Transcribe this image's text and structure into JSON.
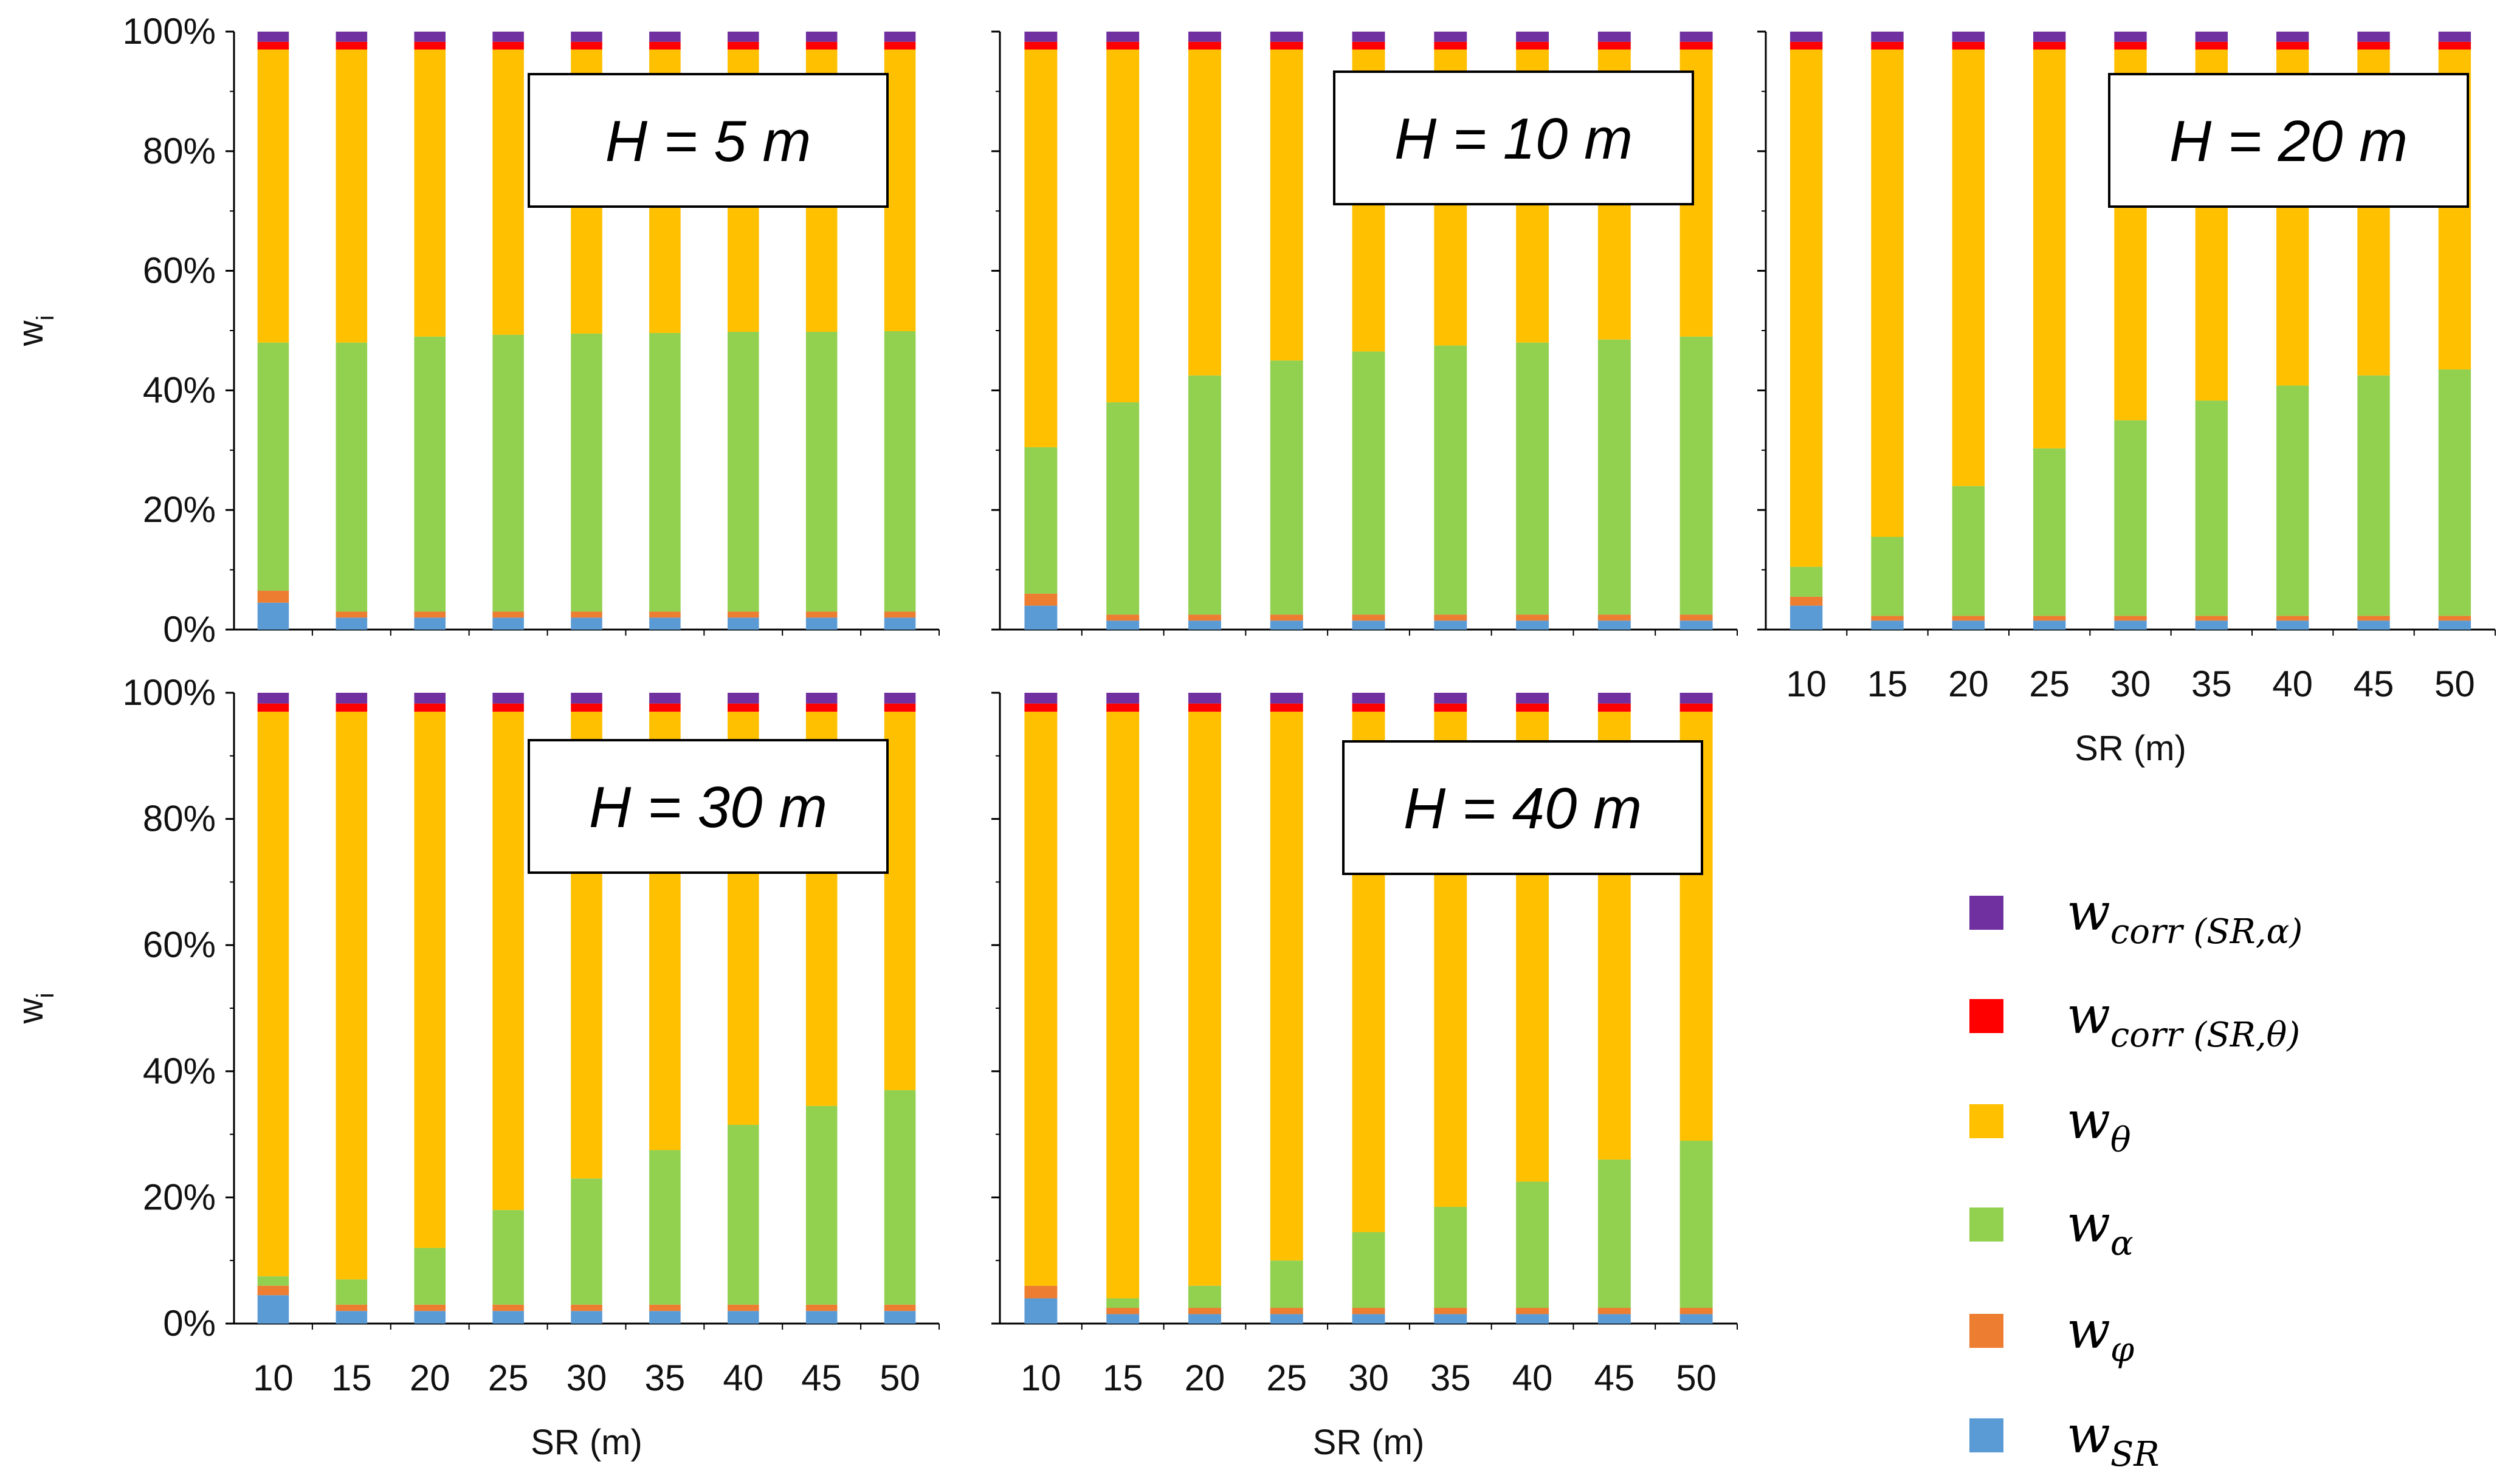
{
  "figure": {
    "y_axis_label": "w",
    "y_axis_label_sub": "i",
    "x_axis_label": "SR (m)"
  },
  "legend": [
    {
      "key": "w_corr_SR_alpha",
      "base": "w",
      "sub": "corr (SR,α)",
      "color": "#7030A0"
    },
    {
      "key": "w_corr_SR_theta",
      "base": "w",
      "sub": "corr (SR,θ)",
      "color": "#FF0000"
    },
    {
      "key": "w_theta",
      "base": "w",
      "sub": "θ",
      "color": "#FFC000"
    },
    {
      "key": "w_alpha",
      "base": "w",
      "sub": "α",
      "color": "#92D050"
    },
    {
      "key": "w_phi",
      "base": "w",
      "sub": "φ",
      "color": "#ED7D31"
    },
    {
      "key": "w_SR",
      "base": "w",
      "sub": "SR",
      "color": "#5B9BD5"
    }
  ],
  "chart_data": [
    {
      "type": "bar",
      "stacked": true,
      "title": "H = 5 m",
      "xlabel": "SR (m)",
      "ylabel": "wi",
      "ylim": [
        0,
        100
      ],
      "yticks": [
        "0%",
        "20%",
        "40%",
        "60%",
        "80%",
        "100%"
      ],
      "categories": [
        "10",
        "15",
        "20",
        "25",
        "30",
        "35",
        "40",
        "45",
        "50"
      ],
      "series": [
        {
          "name": "w_SR",
          "values": [
            4.5,
            2.0,
            2.0,
            2.0,
            2.0,
            2.0,
            2.0,
            2.0,
            2.0
          ]
        },
        {
          "name": "w_phi",
          "values": [
            2.0,
            1.0,
            1.0,
            1.0,
            1.0,
            1.0,
            1.0,
            1.0,
            1.0
          ]
        },
        {
          "name": "w_alpha",
          "values": [
            41.5,
            45.0,
            46.0,
            46.3,
            46.5,
            46.6,
            46.8,
            46.8,
            46.9
          ]
        },
        {
          "name": "w_theta",
          "values": [
            49.0,
            49.0,
            48.0,
            47.7,
            47.5,
            47.4,
            47.2,
            47.2,
            47.1
          ]
        },
        {
          "name": "w_corr_SR_theta",
          "values": [
            1.3,
            1.3,
            1.3,
            1.3,
            1.3,
            1.3,
            1.3,
            1.3,
            1.3
          ]
        },
        {
          "name": "w_corr_SR_alpha",
          "values": [
            1.7,
            1.7,
            1.7,
            1.7,
            1.7,
            1.7,
            1.7,
            1.7,
            1.7
          ]
        }
      ]
    },
    {
      "type": "bar",
      "stacked": true,
      "title": "H = 10 m",
      "xlabel": "SR (m)",
      "ylabel": "wi",
      "ylim": [
        0,
        100
      ],
      "yticks": [
        "0%",
        "20%",
        "40%",
        "60%",
        "80%",
        "100%"
      ],
      "categories": [
        "10",
        "15",
        "20",
        "25",
        "30",
        "35",
        "40",
        "45",
        "50"
      ],
      "series": [
        {
          "name": "w_SR",
          "values": [
            4.0,
            1.5,
            1.5,
            1.5,
            1.5,
            1.5,
            1.5,
            1.5,
            1.5
          ]
        },
        {
          "name": "w_phi",
          "values": [
            2.0,
            1.0,
            1.0,
            1.0,
            1.0,
            1.0,
            1.0,
            1.0,
            1.0
          ]
        },
        {
          "name": "w_alpha",
          "values": [
            24.5,
            35.5,
            40.0,
            42.5,
            44.0,
            45.0,
            45.5,
            46.0,
            46.5
          ]
        },
        {
          "name": "w_theta",
          "values": [
            66.5,
            59.0,
            54.5,
            52.0,
            50.5,
            49.5,
            49.0,
            48.5,
            48.0
          ]
        },
        {
          "name": "w_corr_SR_theta",
          "values": [
            1.3,
            1.3,
            1.3,
            1.3,
            1.3,
            1.3,
            1.3,
            1.3,
            1.3
          ]
        },
        {
          "name": "w_corr_SR_alpha",
          "values": [
            1.7,
            1.7,
            1.7,
            1.7,
            1.7,
            1.7,
            1.7,
            1.7,
            1.7
          ]
        }
      ]
    },
    {
      "type": "bar",
      "stacked": true,
      "title": "H = 20 m",
      "xlabel": "SR (m)",
      "ylabel": "wi",
      "ylim": [
        0,
        100
      ],
      "yticks": [
        "0%",
        "20%",
        "40%",
        "60%",
        "80%",
        "100%"
      ],
      "categories": [
        "10",
        "15",
        "20",
        "25",
        "30",
        "35",
        "40",
        "45",
        "50"
      ],
      "series": [
        {
          "name": "w_SR",
          "values": [
            4.0,
            1.5,
            1.5,
            1.5,
            1.5,
            1.5,
            1.5,
            1.5,
            1.5
          ]
        },
        {
          "name": "w_phi",
          "values": [
            1.5,
            0.8,
            0.8,
            0.8,
            0.8,
            0.8,
            0.8,
            0.8,
            0.8
          ]
        },
        {
          "name": "w_alpha",
          "values": [
            5.0,
            13.2,
            21.7,
            28.0,
            32.7,
            36.0,
            38.5,
            40.2,
            41.2
          ]
        },
        {
          "name": "w_theta",
          "values": [
            86.5,
            81.5,
            73.0,
            66.7,
            62.0,
            58.7,
            56.2,
            54.5,
            53.5
          ]
        },
        {
          "name": "w_corr_SR_theta",
          "values": [
            1.3,
            1.3,
            1.3,
            1.3,
            1.3,
            1.3,
            1.3,
            1.3,
            1.3
          ]
        },
        {
          "name": "w_corr_SR_alpha",
          "values": [
            1.7,
            1.7,
            1.7,
            1.7,
            1.7,
            1.7,
            1.7,
            1.7,
            1.7
          ]
        }
      ]
    },
    {
      "type": "bar",
      "stacked": true,
      "title": "H = 30 m",
      "xlabel": "SR (m)",
      "ylabel": "wi",
      "ylim": [
        0,
        100
      ],
      "yticks": [
        "0%",
        "20%",
        "40%",
        "60%",
        "80%",
        "100%"
      ],
      "categories": [
        "10",
        "15",
        "20",
        "25",
        "30",
        "35",
        "40",
        "45",
        "50"
      ],
      "series": [
        {
          "name": "w_SR",
          "values": [
            4.5,
            2.0,
            2.0,
            2.0,
            2.0,
            2.0,
            2.0,
            2.0,
            2.0
          ]
        },
        {
          "name": "w_phi",
          "values": [
            1.5,
            1.0,
            1.0,
            1.0,
            1.0,
            1.0,
            1.0,
            1.0,
            1.0
          ]
        },
        {
          "name": "w_alpha",
          "values": [
            1.5,
            4.0,
            9.0,
            15.0,
            20.0,
            24.5,
            28.5,
            31.5,
            34.0
          ]
        },
        {
          "name": "w_theta",
          "values": [
            89.5,
            90.0,
            85.0,
            79.0,
            74.0,
            69.5,
            65.5,
            62.5,
            60.0
          ]
        },
        {
          "name": "w_corr_SR_theta",
          "values": [
            1.3,
            1.3,
            1.3,
            1.3,
            1.3,
            1.3,
            1.3,
            1.3,
            1.3
          ]
        },
        {
          "name": "w_corr_SR_alpha",
          "values": [
            1.7,
            1.7,
            1.7,
            1.7,
            1.7,
            1.7,
            1.7,
            1.7,
            1.7
          ]
        }
      ]
    },
    {
      "type": "bar",
      "stacked": true,
      "title": "H = 40 m",
      "xlabel": "SR (m)",
      "ylabel": "wi",
      "ylim": [
        0,
        100
      ],
      "yticks": [
        "0%",
        "20%",
        "40%",
        "60%",
        "80%",
        "100%"
      ],
      "categories": [
        "10",
        "15",
        "20",
        "25",
        "30",
        "35",
        "40",
        "45",
        "50"
      ],
      "series": [
        {
          "name": "w_SR",
          "values": [
            4.0,
            1.5,
            1.5,
            1.5,
            1.5,
            1.5,
            1.5,
            1.5,
            1.5
          ]
        },
        {
          "name": "w_phi",
          "values": [
            2.0,
            1.0,
            1.0,
            1.0,
            1.0,
            1.0,
            1.0,
            1.0,
            1.0
          ]
        },
        {
          "name": "w_alpha",
          "values": [
            0.0,
            1.5,
            3.5,
            7.5,
            12.0,
            16.0,
            20.0,
            23.5,
            26.5
          ]
        },
        {
          "name": "w_theta",
          "values": [
            91.0,
            93.0,
            91.0,
            87.0,
            82.5,
            78.5,
            74.5,
            71.0,
            68.0
          ]
        },
        {
          "name": "w_corr_SR_theta",
          "values": [
            1.3,
            1.3,
            1.3,
            1.3,
            1.3,
            1.3,
            1.3,
            1.3,
            1.3
          ]
        },
        {
          "name": "w_corr_SR_alpha",
          "values": [
            1.7,
            1.7,
            1.7,
            1.7,
            1.7,
            1.7,
            1.7,
            1.7,
            1.7
          ]
        }
      ]
    }
  ]
}
